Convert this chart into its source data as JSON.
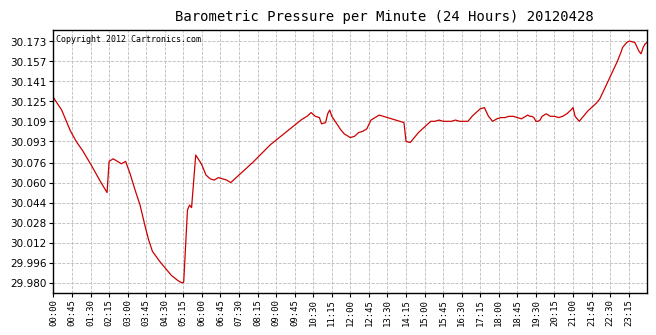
{
  "title": "Barometric Pressure per Minute (24 Hours) 20120428",
  "copyright": "Copyright 2012 Cartronics.com",
  "line_color": "#cc0000",
  "background_color": "#ffffff",
  "grid_color": "#bbbbbb",
  "yticks": [
    29.98,
    29.996,
    30.012,
    30.028,
    30.044,
    30.06,
    30.076,
    30.093,
    30.109,
    30.125,
    30.141,
    30.157,
    30.173
  ],
  "ylim": [
    29.972,
    30.182
  ],
  "xtick_labels": [
    "00:00",
    "00:45",
    "01:30",
    "02:15",
    "03:00",
    "03:45",
    "04:30",
    "05:15",
    "06:00",
    "06:45",
    "07:30",
    "08:15",
    "09:00",
    "09:45",
    "10:30",
    "11:15",
    "12:00",
    "12:45",
    "13:30",
    "14:15",
    "15:00",
    "15:45",
    "16:30",
    "17:15",
    "18:00",
    "18:45",
    "19:30",
    "20:15",
    "21:00",
    "21:45",
    "22:30",
    "23:15"
  ],
  "key_points": [
    [
      0,
      30.128
    ],
    [
      20,
      30.118
    ],
    [
      40,
      30.102
    ],
    [
      55,
      30.093
    ],
    [
      70,
      30.086
    ],
    [
      90,
      30.075
    ],
    [
      110,
      30.063
    ],
    [
      130,
      30.052
    ],
    [
      135,
      30.077
    ],
    [
      145,
      30.079
    ],
    [
      155,
      30.077
    ],
    [
      165,
      30.075
    ],
    [
      175,
      30.077
    ],
    [
      185,
      30.068
    ],
    [
      195,
      30.057
    ],
    [
      210,
      30.042
    ],
    [
      220,
      30.028
    ],
    [
      230,
      30.015
    ],
    [
      240,
      30.005
    ],
    [
      255,
      29.998
    ],
    [
      265,
      29.994
    ],
    [
      275,
      29.99
    ],
    [
      285,
      29.986
    ],
    [
      300,
      29.982
    ],
    [
      310,
      29.98
    ],
    [
      315,
      29.98
    ],
    [
      316,
      29.981
    ],
    [
      325,
      30.038
    ],
    [
      330,
      30.042
    ],
    [
      335,
      30.04
    ],
    [
      345,
      30.082
    ],
    [
      355,
      30.077
    ],
    [
      360,
      30.074
    ],
    [
      370,
      30.066
    ],
    [
      380,
      30.063
    ],
    [
      390,
      30.062
    ],
    [
      400,
      30.064
    ],
    [
      410,
      30.063
    ],
    [
      420,
      30.062
    ],
    [
      430,
      30.06
    ],
    [
      440,
      30.063
    ],
    [
      450,
      30.066
    ],
    [
      460,
      30.069
    ],
    [
      470,
      30.072
    ],
    [
      480,
      30.075
    ],
    [
      495,
      30.08
    ],
    [
      510,
      30.085
    ],
    [
      525,
      30.09
    ],
    [
      540,
      30.094
    ],
    [
      555,
      30.098
    ],
    [
      570,
      30.102
    ],
    [
      585,
      30.106
    ],
    [
      600,
      30.11
    ],
    [
      615,
      30.113
    ],
    [
      625,
      30.116
    ],
    [
      635,
      30.113
    ],
    [
      645,
      30.112
    ],
    [
      650,
      30.107
    ],
    [
      660,
      30.108
    ],
    [
      665,
      30.115
    ],
    [
      670,
      30.118
    ],
    [
      675,
      30.113
    ],
    [
      685,
      30.108
    ],
    [
      695,
      30.103
    ],
    [
      705,
      30.099
    ],
    [
      715,
      30.097
    ],
    [
      720,
      30.096
    ],
    [
      730,
      30.097
    ],
    [
      740,
      30.1
    ],
    [
      750,
      30.101
    ],
    [
      760,
      30.103
    ],
    [
      770,
      30.11
    ],
    [
      780,
      30.112
    ],
    [
      790,
      30.114
    ],
    [
      800,
      30.113
    ],
    [
      810,
      30.112
    ],
    [
      820,
      30.111
    ],
    [
      830,
      30.11
    ],
    [
      840,
      30.109
    ],
    [
      850,
      30.108
    ],
    [
      855,
      30.093
    ],
    [
      865,
      30.092
    ],
    [
      875,
      30.096
    ],
    [
      885,
      30.1
    ],
    [
      895,
      30.103
    ],
    [
      905,
      30.106
    ],
    [
      915,
      30.109
    ],
    [
      925,
      30.109
    ],
    [
      935,
      30.11
    ],
    [
      945,
      30.109
    ],
    [
      955,
      30.109
    ],
    [
      965,
      30.109
    ],
    [
      975,
      30.11
    ],
    [
      985,
      30.109
    ],
    [
      995,
      30.109
    ],
    [
      1005,
      30.109
    ],
    [
      1015,
      30.113
    ],
    [
      1025,
      30.116
    ],
    [
      1035,
      30.119
    ],
    [
      1045,
      30.12
    ],
    [
      1055,
      30.113
    ],
    [
      1065,
      30.109
    ],
    [
      1075,
      30.111
    ],
    [
      1085,
      30.112
    ],
    [
      1095,
      30.112
    ],
    [
      1105,
      30.113
    ],
    [
      1115,
      30.113
    ],
    [
      1125,
      30.112
    ],
    [
      1135,
      30.111
    ],
    [
      1140,
      30.112
    ],
    [
      1145,
      30.113
    ],
    [
      1150,
      30.114
    ],
    [
      1155,
      30.113
    ],
    [
      1160,
      30.113
    ],
    [
      1165,
      30.112
    ],
    [
      1170,
      30.109
    ],
    [
      1175,
      30.109
    ],
    [
      1180,
      30.11
    ],
    [
      1185,
      30.113
    ],
    [
      1195,
      30.115
    ],
    [
      1205,
      30.113
    ],
    [
      1215,
      30.113
    ],
    [
      1225,
      30.112
    ],
    [
      1235,
      30.113
    ],
    [
      1245,
      30.115
    ],
    [
      1255,
      30.118
    ],
    [
      1260,
      30.12
    ],
    [
      1265,
      30.113
    ],
    [
      1275,
      30.109
    ],
    [
      1285,
      30.113
    ],
    [
      1295,
      30.117
    ],
    [
      1305,
      30.12
    ],
    [
      1315,
      30.123
    ],
    [
      1325,
      30.127
    ],
    [
      1335,
      30.134
    ],
    [
      1345,
      30.141
    ],
    [
      1355,
      30.148
    ],
    [
      1365,
      30.155
    ],
    [
      1370,
      30.159
    ],
    [
      1375,
      30.163
    ],
    [
      1380,
      30.168
    ],
    [
      1385,
      30.17
    ],
    [
      1390,
      30.172
    ],
    [
      1395,
      30.173
    ],
    [
      1400,
      30.173
    ],
    [
      1410,
      30.172
    ],
    [
      1420,
      30.165
    ],
    [
      1425,
      30.163
    ],
    [
      1430,
      30.168
    ],
    [
      1435,
      30.171
    ],
    [
      1439,
      30.172
    ]
  ]
}
